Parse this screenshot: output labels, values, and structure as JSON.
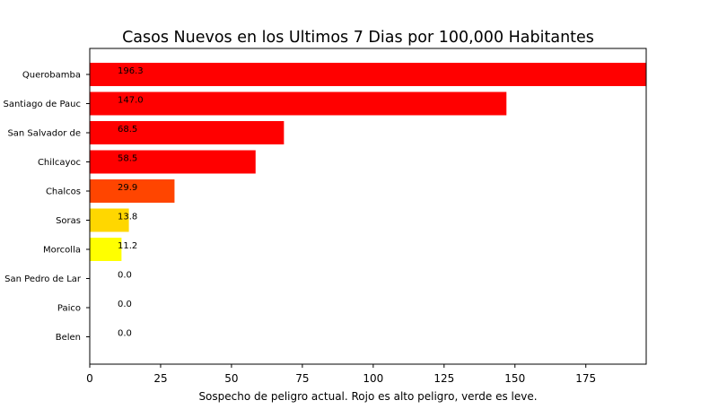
{
  "chart_data": {
    "type": "bar",
    "orientation": "horizontal",
    "title": "Casos Nuevos en los Ultimos 7 Dias por 100,000 Habitantes",
    "xlabel": "Sospecho de peligro actual. Rojo es alto peligro, verde es leve.",
    "ylabel": "",
    "xlim": [
      0,
      196.3
    ],
    "xticks": [
      "0",
      "25",
      "50",
      "75",
      "100",
      "125",
      "150",
      "175"
    ],
    "grid": false,
    "categories": [
      "Querobamba",
      "Santiago de Pauc",
      "San Salvador de ",
      "Chilcayoc",
      "Chalcos",
      "Soras",
      "Morcolla",
      "San Pedro de Lar",
      "Paico",
      "Belen"
    ],
    "values": [
      196.3,
      147.0,
      68.5,
      58.5,
      29.9,
      13.8,
      11.2,
      0.0,
      0.0,
      0.0
    ],
    "value_labels": [
      "196.3",
      "147.0",
      "68.5",
      "58.5",
      "29.9",
      "13.8",
      "11.2",
      "0.0",
      "0.0",
      "0.0"
    ],
    "colors": [
      "#ff0000",
      "#ff0000",
      "#ff0000",
      "#ff0000",
      "#ff4500",
      "#ffd700",
      "#ffff00",
      "#ffffff",
      "#ffffff",
      "#ffffff"
    ]
  }
}
